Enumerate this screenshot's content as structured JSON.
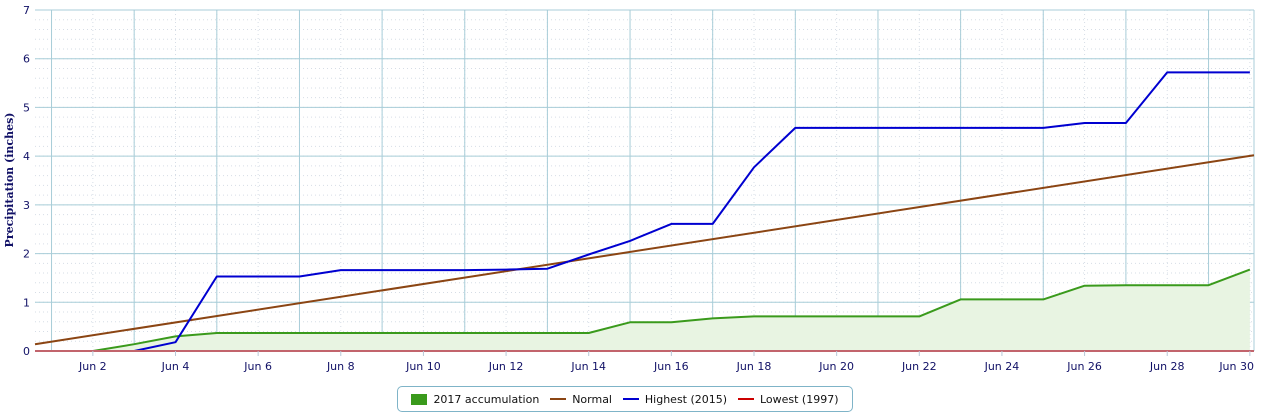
{
  "chart_data": {
    "type": "line",
    "title": "",
    "xlabel": "",
    "ylabel": "Precipitation (inches)",
    "ylim": [
      0,
      7
    ],
    "yticks": [
      "0",
      "1",
      "2",
      "3",
      "4",
      "5",
      "6",
      "7"
    ],
    "xlim": [
      0.6,
      30.1
    ],
    "xticks": [
      {
        "x": 2,
        "label": "Jun 2"
      },
      {
        "x": 4,
        "label": "Jun 4"
      },
      {
        "x": 6,
        "label": "Jun 6"
      },
      {
        "x": 8,
        "label": "Jun 8"
      },
      {
        "x": 10,
        "label": "Jun 10"
      },
      {
        "x": 12,
        "label": "Jun 12"
      },
      {
        "x": 14,
        "label": "Jun 14"
      },
      {
        "x": 16,
        "label": "Jun 16"
      },
      {
        "x": 18,
        "label": "Jun 18"
      },
      {
        "x": 20,
        "label": "Jun 20"
      },
      {
        "x": 22,
        "label": "Jun 22"
      },
      {
        "x": 24,
        "label": "Jun 24"
      },
      {
        "x": 26,
        "label": "Jun 26"
      },
      {
        "x": 28,
        "label": "Jun 28"
      },
      {
        "x": 30,
        "label": "Jun 30"
      }
    ],
    "grid": true,
    "legend_position": "bottom-center",
    "series": [
      {
        "name": "2017 accumulation",
        "kind": "area",
        "color": "#3a9a1c",
        "fill": "#e8f4e2",
        "points": [
          [
            1,
            0
          ],
          [
            2,
            0
          ],
          [
            3,
            0.14
          ],
          [
            4,
            0.3
          ],
          [
            5,
            0.37
          ],
          [
            6,
            0.37
          ],
          [
            7,
            0.37
          ],
          [
            8,
            0.37
          ],
          [
            9,
            0.37
          ],
          [
            10,
            0.37
          ],
          [
            11,
            0.37
          ],
          [
            12,
            0.37
          ],
          [
            13,
            0.37
          ],
          [
            14,
            0.37
          ],
          [
            15,
            0.59
          ],
          [
            16,
            0.59
          ],
          [
            17,
            0.67
          ],
          [
            18,
            0.71
          ],
          [
            19,
            0.71
          ],
          [
            20,
            0.71
          ],
          [
            21,
            0.71
          ],
          [
            22,
            0.71
          ],
          [
            23,
            1.06
          ],
          [
            24,
            1.06
          ],
          [
            25,
            1.06
          ],
          [
            26,
            1.34
          ],
          [
            27,
            1.35
          ],
          [
            28,
            1.35
          ],
          [
            29,
            1.35
          ],
          [
            30,
            1.67
          ]
        ]
      },
      {
        "name": "Normal",
        "kind": "line",
        "color": "#8b4513",
        "points": [
          [
            0.6,
            0.14
          ],
          [
            30.1,
            4.02
          ]
        ]
      },
      {
        "name": "Highest (2015)",
        "kind": "line",
        "color": "#0000d0",
        "points": [
          [
            1,
            0
          ],
          [
            3,
            0
          ],
          [
            4,
            0.18
          ],
          [
            5,
            1.53
          ],
          [
            6,
            1.53
          ],
          [
            7,
            1.53
          ],
          [
            8,
            1.66
          ],
          [
            9,
            1.66
          ],
          [
            10,
            1.66
          ],
          [
            11,
            1.66
          ],
          [
            12,
            1.67
          ],
          [
            13,
            1.69
          ],
          [
            14,
            1.98
          ],
          [
            15,
            2.26
          ],
          [
            16,
            2.61
          ],
          [
            17,
            2.61
          ],
          [
            18,
            3.77
          ],
          [
            19,
            4.58
          ],
          [
            20,
            4.58
          ],
          [
            21,
            4.58
          ],
          [
            22,
            4.58
          ],
          [
            23,
            4.58
          ],
          [
            24,
            4.58
          ],
          [
            25,
            4.58
          ],
          [
            26,
            4.68
          ],
          [
            27,
            4.68
          ],
          [
            28,
            5.72
          ],
          [
            29,
            5.72
          ],
          [
            30,
            5.72
          ]
        ]
      },
      {
        "name": "Lowest (1997)",
        "kind": "line",
        "color": "#cc0000",
        "points": [
          [
            0.6,
            0
          ],
          [
            30.1,
            0
          ]
        ]
      }
    ]
  }
}
